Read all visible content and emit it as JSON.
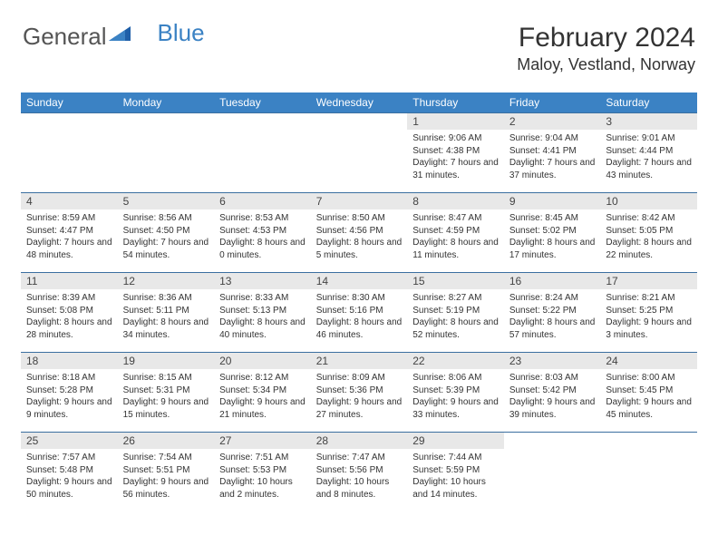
{
  "logo": {
    "part1": "General",
    "part2": "Blue"
  },
  "title": "February 2024",
  "location": "Maloy, Vestland, Norway",
  "colors": {
    "header_bg": "#3b82c4",
    "header_text": "#ffffff",
    "daynum_bg": "#e8e8e8",
    "border": "#3b6fa0",
    "text": "#333333"
  },
  "weekdays": [
    "Sunday",
    "Monday",
    "Tuesday",
    "Wednesday",
    "Thursday",
    "Friday",
    "Saturday"
  ],
  "layout": {
    "first_weekday_index": 4,
    "days_in_month": 29
  },
  "days": {
    "1": {
      "sunrise": "9:06 AM",
      "sunset": "4:38 PM",
      "daylight": "7 hours and 31 minutes."
    },
    "2": {
      "sunrise": "9:04 AM",
      "sunset": "4:41 PM",
      "daylight": "7 hours and 37 minutes."
    },
    "3": {
      "sunrise": "9:01 AM",
      "sunset": "4:44 PM",
      "daylight": "7 hours and 43 minutes."
    },
    "4": {
      "sunrise": "8:59 AM",
      "sunset": "4:47 PM",
      "daylight": "7 hours and 48 minutes."
    },
    "5": {
      "sunrise": "8:56 AM",
      "sunset": "4:50 PM",
      "daylight": "7 hours and 54 minutes."
    },
    "6": {
      "sunrise": "8:53 AM",
      "sunset": "4:53 PM",
      "daylight": "8 hours and 0 minutes."
    },
    "7": {
      "sunrise": "8:50 AM",
      "sunset": "4:56 PM",
      "daylight": "8 hours and 5 minutes."
    },
    "8": {
      "sunrise": "8:47 AM",
      "sunset": "4:59 PM",
      "daylight": "8 hours and 11 minutes."
    },
    "9": {
      "sunrise": "8:45 AM",
      "sunset": "5:02 PM",
      "daylight": "8 hours and 17 minutes."
    },
    "10": {
      "sunrise": "8:42 AM",
      "sunset": "5:05 PM",
      "daylight": "8 hours and 22 minutes."
    },
    "11": {
      "sunrise": "8:39 AM",
      "sunset": "5:08 PM",
      "daylight": "8 hours and 28 minutes."
    },
    "12": {
      "sunrise": "8:36 AM",
      "sunset": "5:11 PM",
      "daylight": "8 hours and 34 minutes."
    },
    "13": {
      "sunrise": "8:33 AM",
      "sunset": "5:13 PM",
      "daylight": "8 hours and 40 minutes."
    },
    "14": {
      "sunrise": "8:30 AM",
      "sunset": "5:16 PM",
      "daylight": "8 hours and 46 minutes."
    },
    "15": {
      "sunrise": "8:27 AM",
      "sunset": "5:19 PM",
      "daylight": "8 hours and 52 minutes."
    },
    "16": {
      "sunrise": "8:24 AM",
      "sunset": "5:22 PM",
      "daylight": "8 hours and 57 minutes."
    },
    "17": {
      "sunrise": "8:21 AM",
      "sunset": "5:25 PM",
      "daylight": "9 hours and 3 minutes."
    },
    "18": {
      "sunrise": "8:18 AM",
      "sunset": "5:28 PM",
      "daylight": "9 hours and 9 minutes."
    },
    "19": {
      "sunrise": "8:15 AM",
      "sunset": "5:31 PM",
      "daylight": "9 hours and 15 minutes."
    },
    "20": {
      "sunrise": "8:12 AM",
      "sunset": "5:34 PM",
      "daylight": "9 hours and 21 minutes."
    },
    "21": {
      "sunrise": "8:09 AM",
      "sunset": "5:36 PM",
      "daylight": "9 hours and 27 minutes."
    },
    "22": {
      "sunrise": "8:06 AM",
      "sunset": "5:39 PM",
      "daylight": "9 hours and 33 minutes."
    },
    "23": {
      "sunrise": "8:03 AM",
      "sunset": "5:42 PM",
      "daylight": "9 hours and 39 minutes."
    },
    "24": {
      "sunrise": "8:00 AM",
      "sunset": "5:45 PM",
      "daylight": "9 hours and 45 minutes."
    },
    "25": {
      "sunrise": "7:57 AM",
      "sunset": "5:48 PM",
      "daylight": "9 hours and 50 minutes."
    },
    "26": {
      "sunrise": "7:54 AM",
      "sunset": "5:51 PM",
      "daylight": "9 hours and 56 minutes."
    },
    "27": {
      "sunrise": "7:51 AM",
      "sunset": "5:53 PM",
      "daylight": "10 hours and 2 minutes."
    },
    "28": {
      "sunrise": "7:47 AM",
      "sunset": "5:56 PM",
      "daylight": "10 hours and 8 minutes."
    },
    "29": {
      "sunrise": "7:44 AM",
      "sunset": "5:59 PM",
      "daylight": "10 hours and 14 minutes."
    }
  },
  "labels": {
    "sunrise": "Sunrise:",
    "sunset": "Sunset:",
    "daylight": "Daylight:"
  }
}
